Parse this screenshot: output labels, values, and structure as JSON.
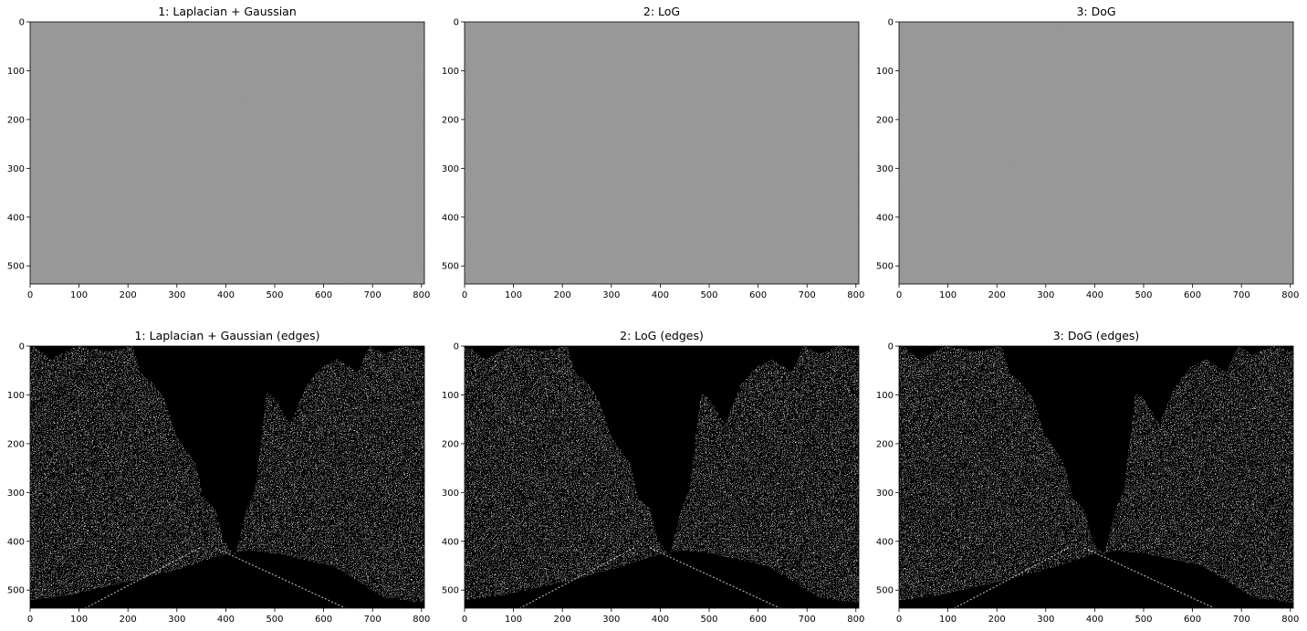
{
  "figure": {
    "panels": [
      {
        "title": "1: Laplacian + Gaussian",
        "style": "gray"
      },
      {
        "title": "2: LoG",
        "style": "gray"
      },
      {
        "title": "3: DoG",
        "style": "gray"
      },
      {
        "title": "1: Laplacian + Gaussian (edges)",
        "style": "edges"
      },
      {
        "title": "2: LoG (edges)",
        "style": "edges"
      },
      {
        "title": "3: DoG (edges)",
        "style": "edges"
      }
    ],
    "x_ticks": [
      "0",
      "100",
      "200",
      "300",
      "400",
      "500",
      "600",
      "700",
      "800"
    ],
    "y_ticks": [
      "0",
      "100",
      "200",
      "300",
      "400",
      "500"
    ],
    "colors": {
      "gray_bg": "#808080",
      "edges_bg": "#000000",
      "edges_fg": "#ffffff"
    }
  }
}
